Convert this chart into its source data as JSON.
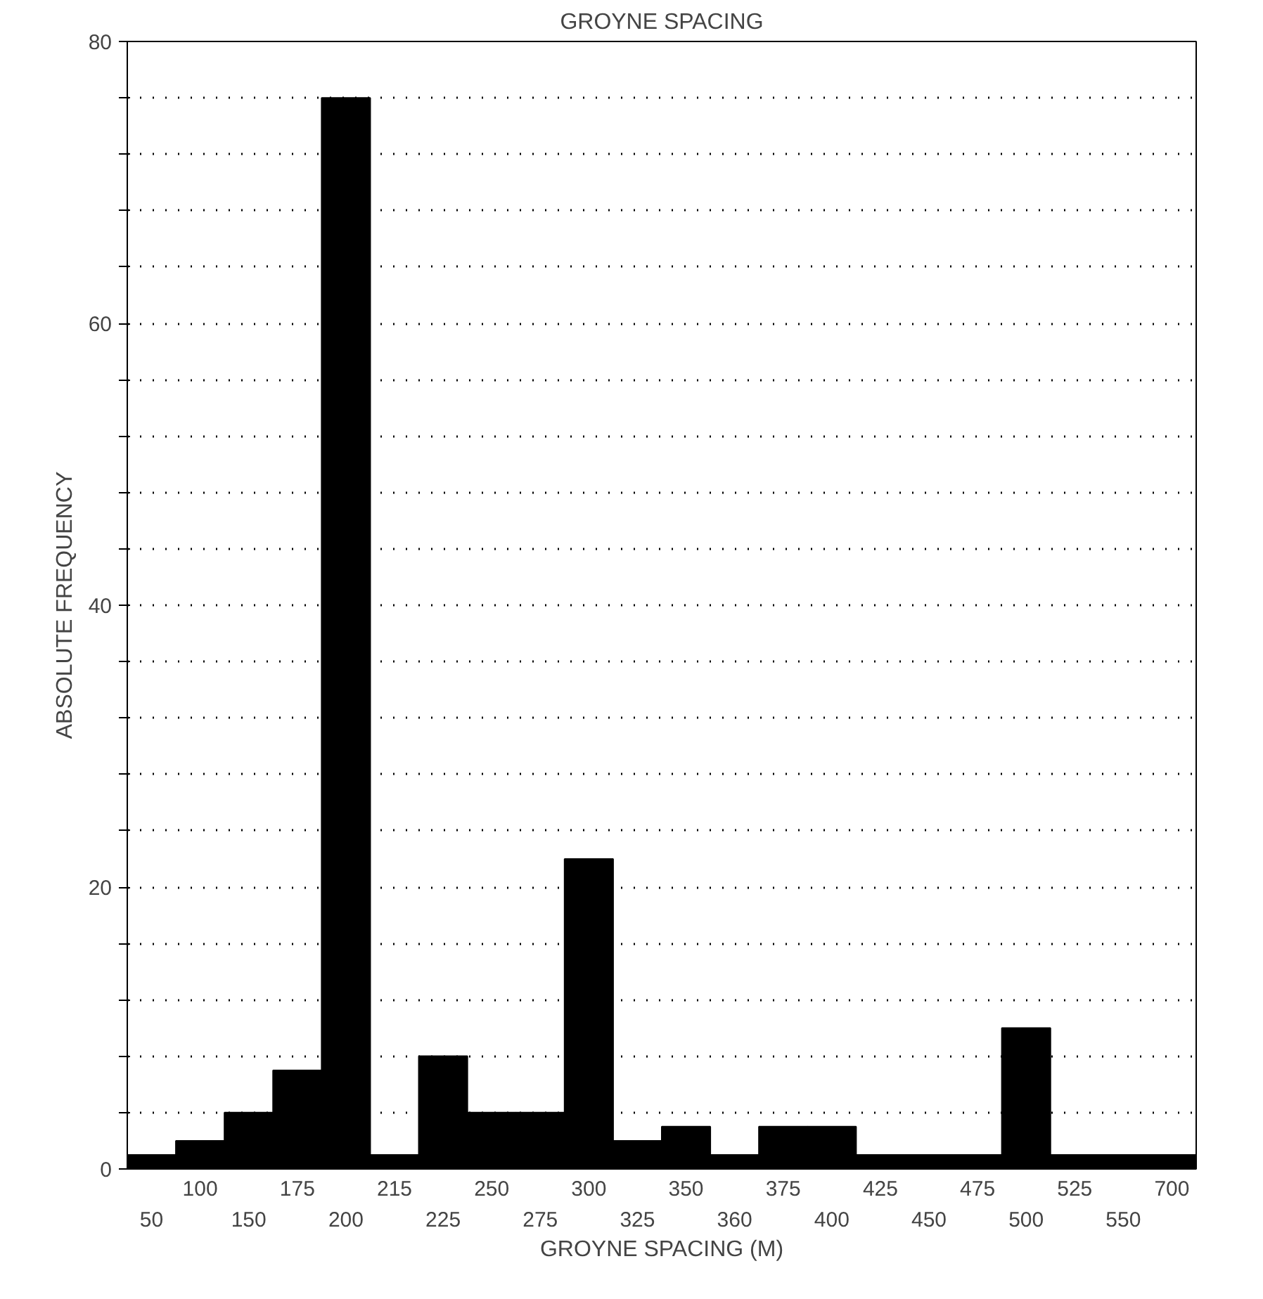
{
  "chart_data": {
    "type": "bar",
    "title": "GROYNE SPACING",
    "xlabel": "GROYNE SPACING (M)",
    "ylabel": "ABSOLUTE FREQUENCY",
    "categories": [
      "50",
      "100",
      "150",
      "175",
      "200",
      "215",
      "225",
      "250",
      "275",
      "300",
      "325",
      "350",
      "360",
      "375",
      "400",
      "425",
      "450",
      "475",
      "500",
      "525",
      "550",
      "700"
    ],
    "values": [
      1,
      2,
      4,
      7,
      76,
      1,
      8,
      4,
      4,
      22,
      2,
      3,
      1,
      3,
      3,
      1,
      1,
      1,
      10,
      1,
      1,
      1
    ],
    "color": "#000000",
    "ylim": [
      0,
      80
    ],
    "yticks": [
      0,
      {
        "value": 4,
        "label": null
      },
      {
        "value": 8,
        "label": null
      },
      {
        "value": 12,
        "label": null
      },
      {
        "value": 16,
        "label": null
      },
      20,
      {
        "value": 24,
        "label": null
      },
      {
        "value": 28,
        "label": null
      },
      {
        "value": 32,
        "label": null
      },
      {
        "value": 36,
        "label": null
      },
      40,
      {
        "value": 44,
        "label": null
      },
      {
        "value": 48,
        "label": null
      },
      {
        "value": 52,
        "label": null
      },
      {
        "value": 56,
        "label": null
      },
      60,
      {
        "value": 64,
        "label": null
      },
      {
        "value": 68,
        "label": null
      },
      {
        "value": 72,
        "label": null
      },
      {
        "value": 76,
        "label": null
      },
      80
    ],
    "grid": "y",
    "line_style": "dotted"
  }
}
